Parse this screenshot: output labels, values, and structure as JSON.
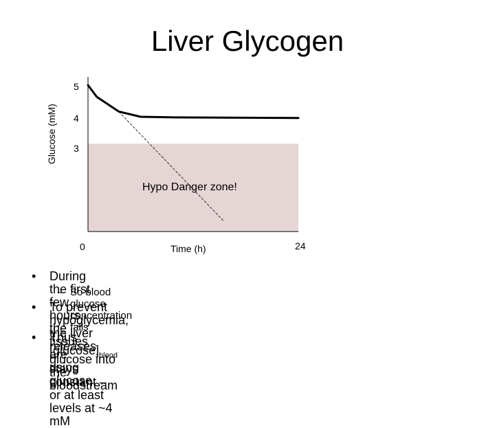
{
  "slide_title": "Liver Glycogen",
  "chart_data": {
    "type": "line",
    "ylabel": "Glucose (mM)",
    "xlabel": "Time (h)",
    "x_ticks": [
      "0",
      "24"
    ],
    "y_ticks": [
      "5",
      "4",
      "3"
    ],
    "xlim": [
      0,
      24
    ],
    "ylim": [
      0,
      5.2
    ],
    "zone": {
      "label": "Hypo Danger zone!",
      "y_max": 3,
      "color": "#e5d5d5"
    },
    "series": [
      {
        "style": "solid",
        "color": "#000000",
        "x": [
          0,
          1,
          3.5,
          6,
          10,
          24
        ],
        "y": [
          5.0,
          4.6,
          4.1,
          3.92,
          3.9,
          3.88
        ]
      },
      {
        "style": "dashed",
        "color": "#000000",
        "x": [
          3.5,
          15.5
        ],
        "y": [
          4.1,
          0.35
        ]
      }
    ]
  },
  "bullets": [
    {
      "text": "During the first few hours, the tissues are using glucose"
    },
    {
      "text": "So blood glucose concentration falls"
    },
    {
      "line1": "To prevent hypoglycemia, the liver releases glucose into the",
      "line2": "bloodstream"
    },
    {
      "pre": "Thus [glucose]",
      "subscript": "blood",
      "post": " stays constant – or at least levels at  ~4 mM"
    }
  ]
}
